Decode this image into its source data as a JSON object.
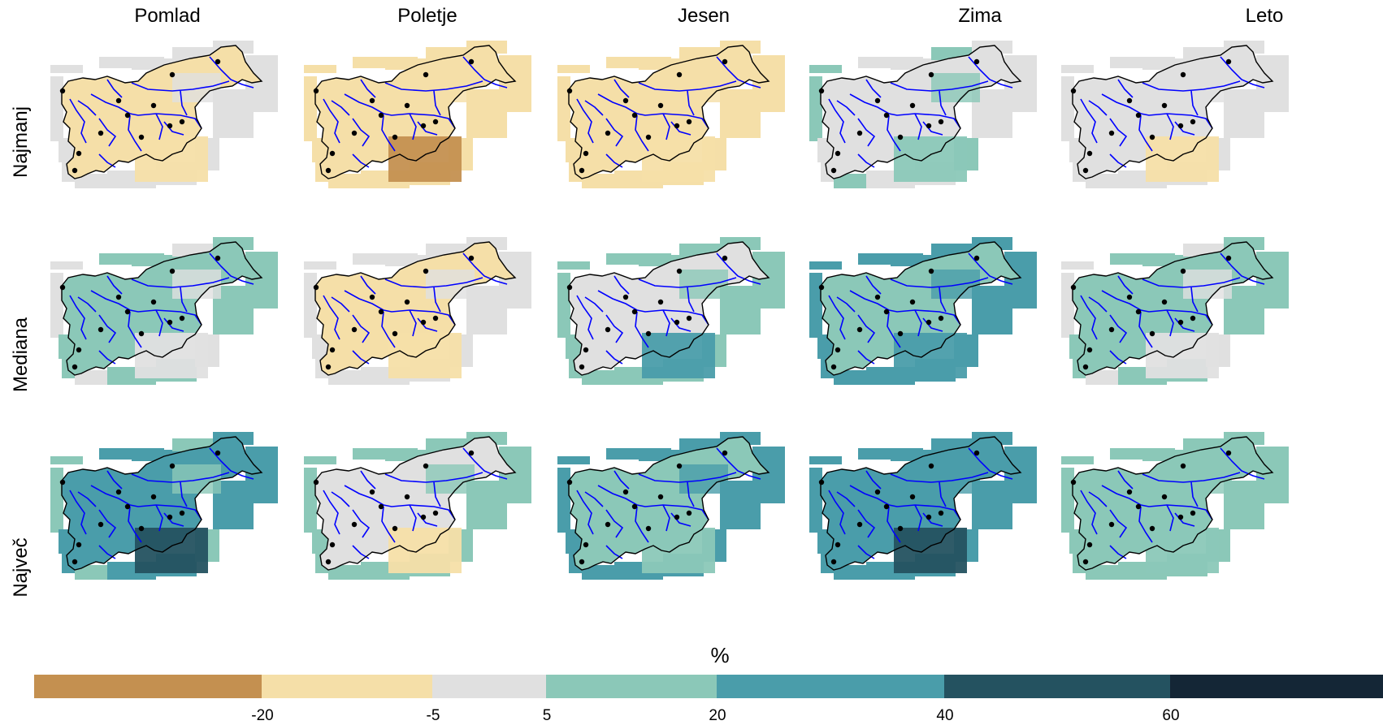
{
  "columns": [
    "Pomlad",
    "Poletje",
    "Jesen",
    "Zima",
    "Leto"
  ],
  "rows": [
    "Najmanj",
    "Mediana",
    "Največ"
  ],
  "legend": {
    "title": "%",
    "ticks": [
      "-20",
      "-5",
      "5",
      "20",
      "40",
      "60"
    ],
    "bins": [
      {
        "color": "#C49050"
      },
      {
        "color": "#F5DFA8"
      },
      {
        "color": "#E0E0E0"
      },
      {
        "color": "#8BC8B8"
      },
      {
        "color": "#4A9DAA"
      },
      {
        "color": "#245260"
      },
      {
        "color": "#142636"
      }
    ]
  },
  "map_colors": {
    "grid_cells": "#E0E0E0",
    "rivers": "#0000FF",
    "border": "#000000",
    "cities": "#000000"
  },
  "panels": [
    [
      {
        "base": 2,
        "fill": 1,
        "alt": 2,
        "patch": 1
      },
      {
        "base": 1,
        "fill": 1,
        "alt": 1,
        "patch": 0
      },
      {
        "base": 1,
        "fill": 1,
        "alt": 1,
        "patch": 1
      },
      {
        "base": 2,
        "fill": 2,
        "alt": 3,
        "patch": 3
      },
      {
        "base": 2,
        "fill": 2,
        "alt": 2,
        "patch": 1
      }
    ],
    [
      {
        "base": 3,
        "fill": 3,
        "alt": 2,
        "patch": 2
      },
      {
        "base": 2,
        "fill": 1,
        "alt": 2,
        "patch": 1
      },
      {
        "base": 3,
        "fill": 2,
        "alt": 3,
        "patch": 4
      },
      {
        "base": 4,
        "fill": 3,
        "alt": 4,
        "patch": 4
      },
      {
        "base": 3,
        "fill": 3,
        "alt": 2,
        "patch": 2
      }
    ],
    [
      {
        "base": 4,
        "fill": 4,
        "alt": 3,
        "patch": 5
      },
      {
        "base": 3,
        "fill": 2,
        "alt": 3,
        "patch": 1
      },
      {
        "base": 4,
        "fill": 3,
        "alt": 4,
        "patch": 3
      },
      {
        "base": 4,
        "fill": 4,
        "alt": 4,
        "patch": 5
      },
      {
        "base": 3,
        "fill": 3,
        "alt": 3,
        "patch": 3
      }
    ]
  ]
}
